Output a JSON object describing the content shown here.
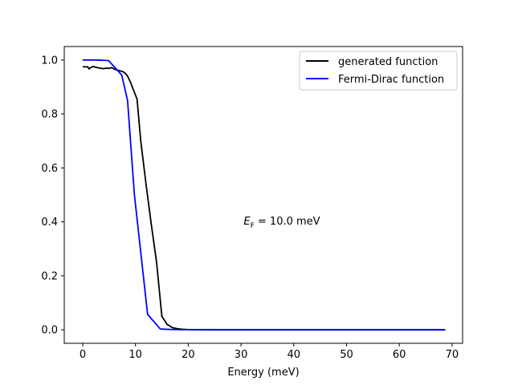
{
  "chart_data": {
    "type": "line",
    "title": "",
    "xlabel": "Energy (meV)",
    "ylabel": "",
    "xlim": [
      -3.5,
      72
    ],
    "ylim": [
      -0.05,
      1.05
    ],
    "xticks": [
      0,
      10,
      20,
      30,
      40,
      50,
      60,
      70
    ],
    "xtick_labels": [
      "0",
      "10",
      "20",
      "30",
      "40",
      "50",
      "60",
      "70"
    ],
    "yticks": [
      0.0,
      0.2,
      0.4,
      0.6,
      0.8,
      1.0
    ],
    "ytick_labels": [
      "0.0",
      "0.2",
      "0.4",
      "0.6",
      "0.8",
      "1.0"
    ],
    "grid": false,
    "legend_position": "top-right",
    "annotation": {
      "x": 30.5,
      "y": 0.39,
      "symbol": "E",
      "subscript": "F",
      "text": " = 10.0 meV"
    },
    "series": [
      {
        "name": "generated function",
        "color": "#000000",
        "x": [
          0,
          0.5,
          1.0,
          1.2,
          1.5,
          2.0,
          2.5,
          3.0,
          3.5,
          4.0,
          4.5,
          5.0,
          5.5,
          6.0,
          6.5,
          7.0,
          7.5,
          8.0,
          8.5,
          9.0,
          9.5,
          10.0,
          10.3,
          11.0,
          12.0,
          13.0,
          14.0,
          15.0,
          16.0,
          17.0,
          18.0,
          19.0,
          20.0,
          22.0,
          25.0,
          30.0,
          40.0,
          50.0,
          60.0,
          68.7
        ],
        "y": [
          0.975,
          0.975,
          0.974,
          0.967,
          0.972,
          0.976,
          0.973,
          0.971,
          0.969,
          0.968,
          0.97,
          0.969,
          0.972,
          0.966,
          0.963,
          0.96,
          0.958,
          0.952,
          0.94,
          0.92,
          0.895,
          0.87,
          0.855,
          0.7,
          0.54,
          0.39,
          0.25,
          0.05,
          0.02,
          0.008,
          0.004,
          0.002,
          0.001,
          0.0005,
          0.0,
          0.0,
          0.0,
          0.0,
          0.0,
          0.0
        ]
      },
      {
        "name": "Fermi-Dirac function",
        "color": "#0000ff",
        "x": [
          0,
          2.5,
          4.9,
          7.4,
          8.5,
          9.8,
          12.3,
          14.7,
          17.2,
          19.6,
          22.1,
          24.5,
          30.0,
          40.0,
          50.0,
          60.0,
          68.7
        ],
        "y": [
          1.0,
          1.0,
          0.998,
          0.944,
          0.85,
          0.5,
          0.057,
          0.003,
          0.001,
          0.0002,
          0.0,
          0.0,
          0.0,
          0.0,
          0.0,
          0.0,
          0.0
        ]
      }
    ]
  }
}
